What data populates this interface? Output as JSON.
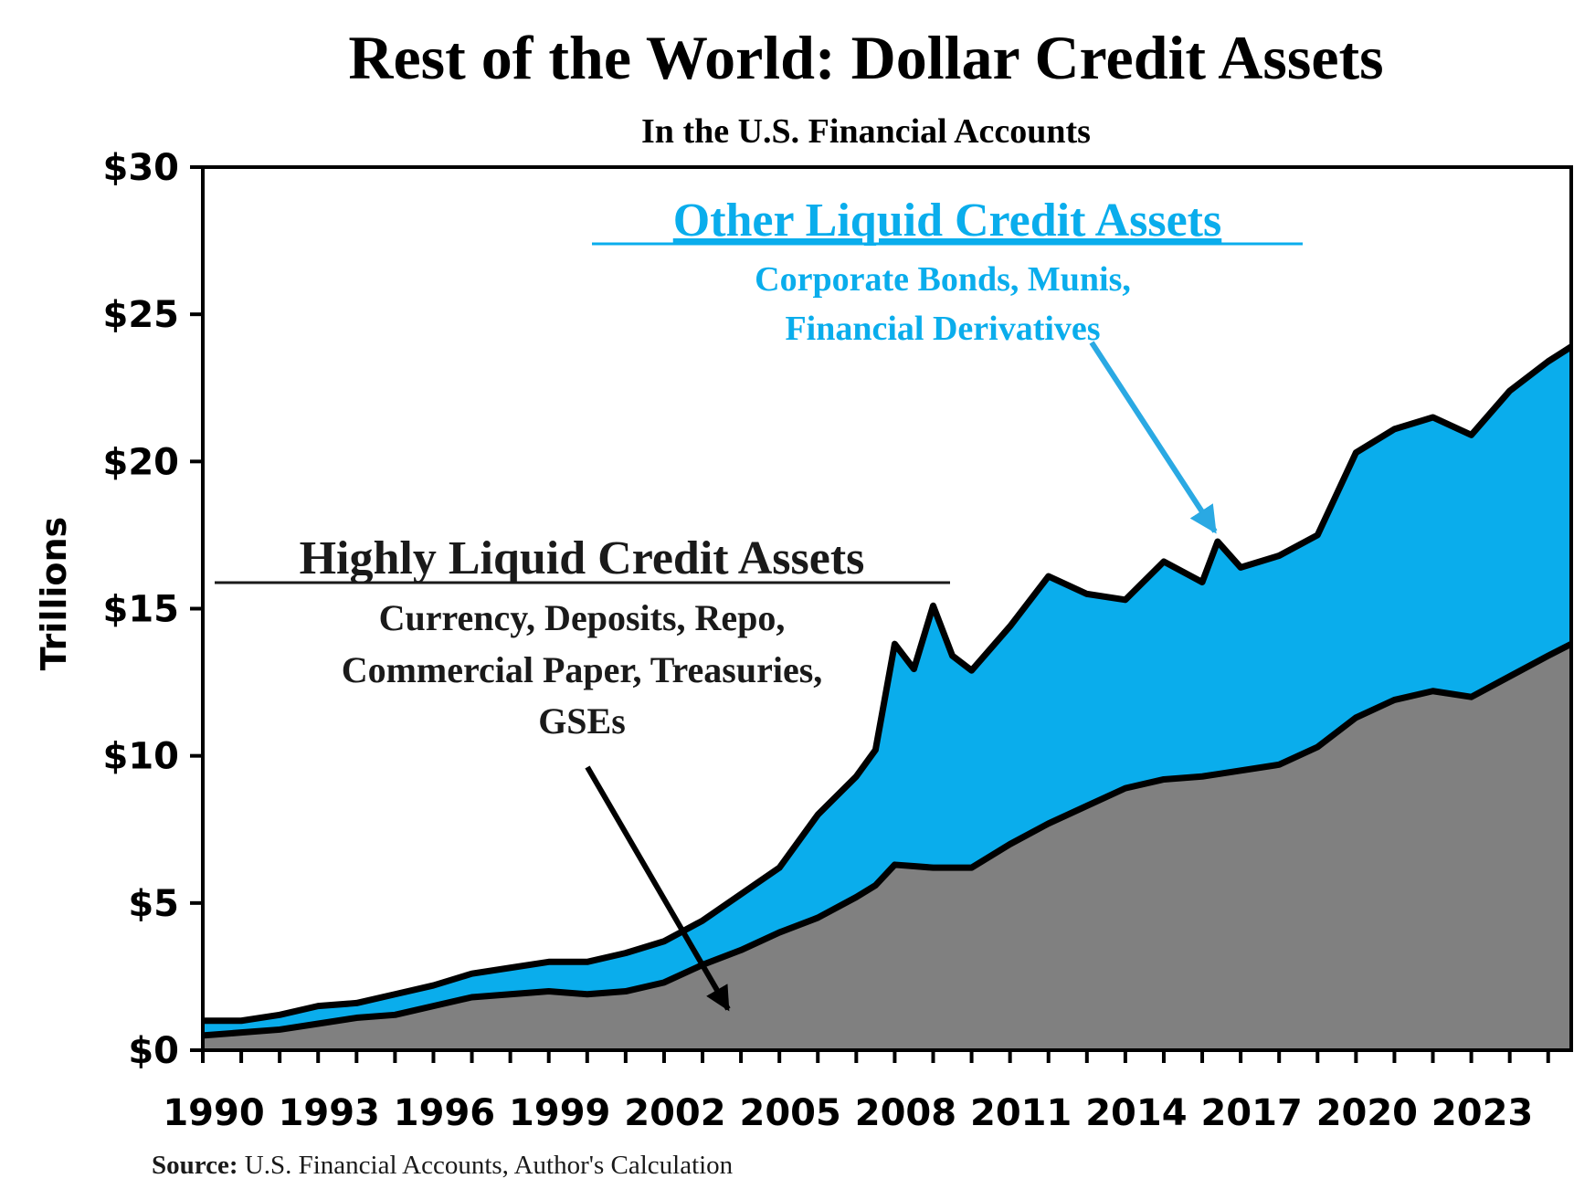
{
  "chart_data": {
    "type": "area",
    "stacked": true,
    "title": "Rest of the World: Dollar Credit Assets",
    "subtitle": "In the U.S. Financial Accounts",
    "ylabel": "Trillions",
    "xlim": [
      1990,
      2025.6
    ],
    "ylim": [
      0,
      30
    ],
    "y_ticks": [
      0,
      5,
      10,
      15,
      20,
      25,
      30
    ],
    "y_tick_labels": [
      "$0",
      "$5",
      "$10",
      "$15",
      "$20",
      "$25",
      "$30"
    ],
    "x_ticks": [
      1990,
      1993,
      1996,
      1999,
      2002,
      2005,
      2008,
      2011,
      2014,
      2017,
      2020,
      2023
    ],
    "x_tick_labels": [
      "1990",
      "1993",
      "1996",
      "1999",
      "2002",
      "2005",
      "2008",
      "2011",
      "2014",
      "2017",
      "2020",
      "2023"
    ],
    "grid": false,
    "legend": "none",
    "colors": {
      "highly_liquid": "#808080",
      "other_liquid": "#0aadec",
      "outline": "#000000",
      "arrow_blue": "#2aa9e3"
    },
    "series": [
      {
        "name": "Highly Liquid Credit Assets",
        "x": [
          1990,
          1991,
          1992,
          1993,
          1994,
          1995,
          1996,
          1997,
          1998,
          1999,
          2000,
          2001,
          2002,
          2003,
          2004,
          2005,
          2006,
          2007,
          2007.5,
          2008,
          2009,
          2010,
          2011,
          2012,
          2013,
          2014,
          2015,
          2016,
          2017,
          2018,
          2019,
          2020,
          2021,
          2022,
          2023,
          2024,
          2025,
          2025.6
        ],
        "values": [
          0.5,
          0.6,
          0.7,
          0.9,
          1.1,
          1.2,
          1.5,
          1.8,
          1.9,
          2.0,
          1.9,
          2.0,
          2.3,
          2.9,
          3.4,
          4.0,
          4.5,
          5.2,
          5.6,
          6.3,
          6.2,
          6.2,
          7.0,
          7.7,
          8.3,
          8.9,
          9.2,
          9.3,
          9.5,
          9.7,
          10.3,
          11.3,
          11.9,
          12.2,
          12.0,
          12.7,
          13.4,
          13.8
        ]
      },
      {
        "name": "Other Liquid Credit Assets",
        "x": [
          1990,
          1991,
          1992,
          1993,
          1994,
          1995,
          1996,
          1997,
          1998,
          1999,
          2000,
          2001,
          2002,
          2003,
          2004,
          2005,
          2006,
          2007,
          2007.5,
          2008,
          2008.5,
          2009,
          2009.5,
          2010,
          2011,
          2012,
          2013,
          2014,
          2015,
          2016,
          2016.4,
          2017,
          2018,
          2019,
          2020,
          2021,
          2022,
          2023,
          2024,
          2025,
          2025.6
        ],
        "values": [
          0.5,
          0.4,
          0.5,
          0.6,
          0.5,
          0.7,
          0.7,
          0.8,
          0.9,
          1.0,
          1.1,
          1.3,
          1.4,
          1.5,
          1.9,
          2.2,
          3.5,
          4.1,
          4.6,
          7.5,
          6.7,
          8.9,
          7.2,
          6.7,
          7.4,
          8.4,
          7.2,
          6.4,
          7.4,
          6.6,
          7.9,
          6.9,
          7.1,
          7.2,
          9.0,
          9.2,
          9.3,
          8.9,
          9.7,
          10.0,
          10.1
        ]
      }
    ],
    "annotations": [
      {
        "title": "Other Liquid Credit Assets",
        "lines": [
          "Corporate Bonds, Munis,",
          "Financial Derivatives"
        ],
        "color": "#0aadec"
      },
      {
        "title": "Highly Liquid Credit Assets",
        "lines": [
          "Currency, Deposits, Repo,",
          "Commercial Paper, Treasuries,",
          "GSEs"
        ],
        "color": "#1a1a1a"
      }
    ],
    "source_label": "Source:",
    "source_text": " U.S. Financial Accounts, Author's Calculation"
  }
}
